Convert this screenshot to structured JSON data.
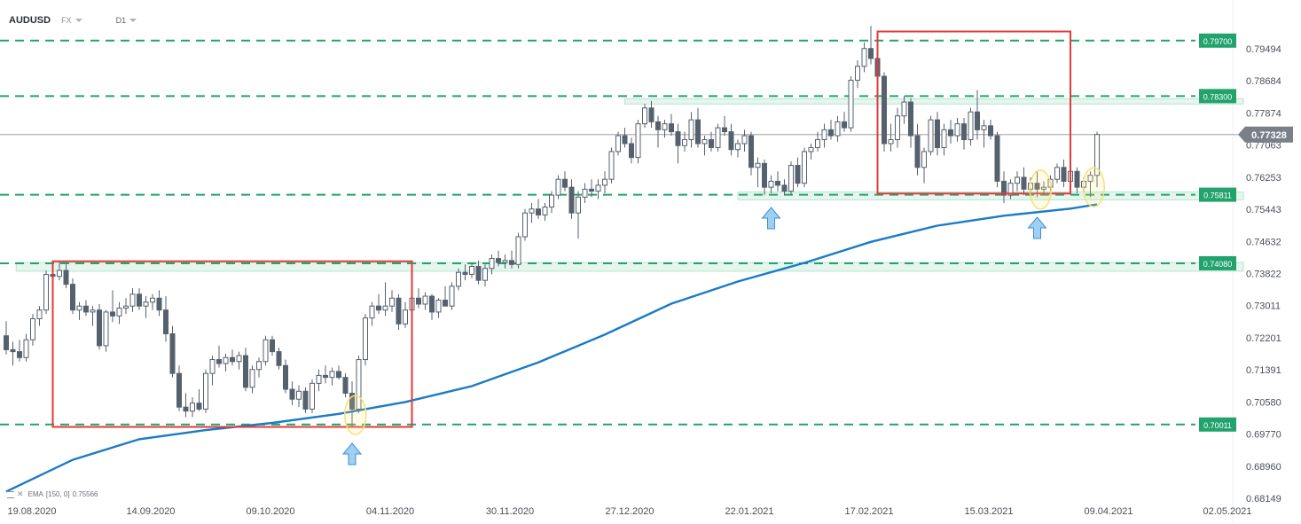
{
  "header": {
    "symbol": "AUDUSD",
    "market": "FX",
    "timeframe": "D1"
  },
  "indicator": {
    "name": "EMA",
    "params": "[150, 0]",
    "value": "0.75566"
  },
  "colors": {
    "bull": "#ffffff",
    "bear": "#56616d",
    "ema": "#1a7bc6",
    "level": "#22a36c",
    "box": "#e03b3b",
    "zone": "#b6e6cf",
    "last_price": "#7a8089"
  },
  "icons": [
    "arrow-up-icon",
    "eye-icon",
    "close-icon"
  ],
  "chart_data": {
    "type": "candlestick",
    "symbol": "AUDUSD",
    "timeframe": "D1",
    "x_tick_labels": [
      "19.08.2020",
      "14.09.2020",
      "09.10.2020",
      "04.11.2020",
      "30.11.2020",
      "27.12.2020",
      "22.01.2021",
      "17.02.2021",
      "15.03.2021",
      "09.04.2021",
      "02.05.2021"
    ],
    "x_ticks": [
      0,
      18,
      36,
      54,
      72,
      90,
      108,
      126,
      144,
      162,
      180
    ],
    "y_tick_labels": [
      "0.79494",
      "0.78684",
      "0.77874",
      "0.77063",
      "0.76253",
      "0.75443",
      "0.74632",
      "0.73822",
      "0.73011",
      "0.72201",
      "0.71391",
      "0.70580",
      "0.69770",
      "0.68960",
      "0.68149"
    ],
    "y_ticks": [
      0.79494,
      0.78684,
      0.77874,
      0.77063,
      0.76253,
      0.75443,
      0.74632,
      0.73822,
      0.73011,
      0.72201,
      0.71391,
      0.7058,
      0.6977,
      0.6896,
      0.68149
    ],
    "last_price": 0.77328,
    "levels": [
      {
        "value": 0.797,
        "label": "0.79700"
      },
      {
        "value": 0.783,
        "label": "0.78300"
      },
      {
        "value": 0.75811,
        "label": "0.75811"
      },
      {
        "value": 0.7408,
        "label": "0.74080"
      },
      {
        "value": 0.70011,
        "label": "0.70011"
      }
    ],
    "boxes": [
      {
        "x0": 7,
        "x1": 61,
        "y_low": 0.6995,
        "y_high": 0.7413
      },
      {
        "x0": 131,
        "x1": 160,
        "y_low": 0.7584,
        "y_high": 0.7993
      }
    ],
    "zones": [
      {
        "x0": 1.5,
        "x1": 186,
        "y_low": 0.7388,
        "y_high": 0.741
      },
      {
        "x0": 93,
        "x1": 186,
        "y_low": 0.781,
        "y_high": 0.7823
      },
      {
        "x0": 110,
        "x1": 186,
        "y_low": 0.7568,
        "y_high": 0.7588
      }
    ],
    "arrows": [
      52,
      115,
      155
    ],
    "circles": [
      {
        "x": 52.5,
        "y": 0.7025
      },
      {
        "x": 155.5,
        "y": 0.7594
      },
      {
        "x": 163.5,
        "y": 0.76
      }
    ],
    "ema": [
      {
        "x": 0,
        "y": 0.6832
      },
      {
        "x": 10,
        "y": 0.6912
      },
      {
        "x": 20,
        "y": 0.6964
      },
      {
        "x": 30,
        "y": 0.6987
      },
      {
        "x": 40,
        "y": 0.7005
      },
      {
        "x": 50,
        "y": 0.7028
      },
      {
        "x": 60,
        "y": 0.7058
      },
      {
        "x": 70,
        "y": 0.7098
      },
      {
        "x": 80,
        "y": 0.7158
      },
      {
        "x": 90,
        "y": 0.7228
      },
      {
        "x": 100,
        "y": 0.7306
      },
      {
        "x": 110,
        "y": 0.7362
      },
      {
        "x": 120,
        "y": 0.7409
      },
      {
        "x": 130,
        "y": 0.7462
      },
      {
        "x": 140,
        "y": 0.7503
      },
      {
        "x": 150,
        "y": 0.7528
      },
      {
        "x": 160,
        "y": 0.7546
      },
      {
        "x": 164,
        "y": 0.75566
      }
    ],
    "candles": [
      {
        "o": 0.7225,
        "h": 0.7262,
        "l": 0.7178,
        "c": 0.719
      },
      {
        "o": 0.719,
        "h": 0.721,
        "l": 0.715,
        "c": 0.7185
      },
      {
        "o": 0.7185,
        "h": 0.7215,
        "l": 0.716,
        "c": 0.717
      },
      {
        "o": 0.717,
        "h": 0.723,
        "l": 0.716,
        "c": 0.7215
      },
      {
        "o": 0.7215,
        "h": 0.728,
        "l": 0.72,
        "c": 0.7268
      },
      {
        "o": 0.7268,
        "h": 0.73,
        "l": 0.725,
        "c": 0.729
      },
      {
        "o": 0.729,
        "h": 0.739,
        "l": 0.728,
        "c": 0.738
      },
      {
        "o": 0.738,
        "h": 0.74,
        "l": 0.734,
        "c": 0.7375
      },
      {
        "o": 0.7375,
        "h": 0.7413,
        "l": 0.7365,
        "c": 0.739
      },
      {
        "o": 0.739,
        "h": 0.7405,
        "l": 0.7345,
        "c": 0.7355
      },
      {
        "o": 0.7355,
        "h": 0.737,
        "l": 0.728,
        "c": 0.729
      },
      {
        "o": 0.729,
        "h": 0.731,
        "l": 0.7265,
        "c": 0.73
      },
      {
        "o": 0.73,
        "h": 0.7315,
        "l": 0.7275,
        "c": 0.7285
      },
      {
        "o": 0.7285,
        "h": 0.73,
        "l": 0.725,
        "c": 0.729
      },
      {
        "o": 0.729,
        "h": 0.7305,
        "l": 0.719,
        "c": 0.72
      },
      {
        "o": 0.72,
        "h": 0.729,
        "l": 0.7185,
        "c": 0.7285
      },
      {
        "o": 0.7285,
        "h": 0.734,
        "l": 0.726,
        "c": 0.7275
      },
      {
        "o": 0.7275,
        "h": 0.731,
        "l": 0.7255,
        "c": 0.7295
      },
      {
        "o": 0.7295,
        "h": 0.732,
        "l": 0.728,
        "c": 0.73
      },
      {
        "o": 0.73,
        "h": 0.7345,
        "l": 0.7285,
        "c": 0.733
      },
      {
        "o": 0.733,
        "h": 0.7345,
        "l": 0.729,
        "c": 0.73
      },
      {
        "o": 0.73,
        "h": 0.7325,
        "l": 0.727,
        "c": 0.731
      },
      {
        "o": 0.731,
        "h": 0.733,
        "l": 0.729,
        "c": 0.732
      },
      {
        "o": 0.732,
        "h": 0.734,
        "l": 0.7275,
        "c": 0.729
      },
      {
        "o": 0.729,
        "h": 0.7325,
        "l": 0.721,
        "c": 0.723
      },
      {
        "o": 0.723,
        "h": 0.725,
        "l": 0.712,
        "c": 0.713
      },
      {
        "o": 0.713,
        "h": 0.715,
        "l": 0.7035,
        "c": 0.7045
      },
      {
        "o": 0.7045,
        "h": 0.708,
        "l": 0.702,
        "c": 0.7035
      },
      {
        "o": 0.7035,
        "h": 0.707,
        "l": 0.702,
        "c": 0.7055
      },
      {
        "o": 0.7055,
        "h": 0.709,
        "l": 0.7035,
        "c": 0.704
      },
      {
        "o": 0.704,
        "h": 0.714,
        "l": 0.703,
        "c": 0.713
      },
      {
        "o": 0.713,
        "h": 0.7175,
        "l": 0.71,
        "c": 0.7165
      },
      {
        "o": 0.7165,
        "h": 0.72,
        "l": 0.7145,
        "c": 0.7155
      },
      {
        "o": 0.7155,
        "h": 0.718,
        "l": 0.7135,
        "c": 0.717
      },
      {
        "o": 0.717,
        "h": 0.719,
        "l": 0.715,
        "c": 0.716
      },
      {
        "o": 0.716,
        "h": 0.7185,
        "l": 0.714,
        "c": 0.7175
      },
      {
        "o": 0.7175,
        "h": 0.7195,
        "l": 0.7085,
        "c": 0.7095
      },
      {
        "o": 0.7095,
        "h": 0.715,
        "l": 0.708,
        "c": 0.714
      },
      {
        "o": 0.714,
        "h": 0.717,
        "l": 0.712,
        "c": 0.716
      },
      {
        "o": 0.716,
        "h": 0.7225,
        "l": 0.715,
        "c": 0.7215
      },
      {
        "o": 0.7215,
        "h": 0.7225,
        "l": 0.7175,
        "c": 0.7185
      },
      {
        "o": 0.7185,
        "h": 0.7195,
        "l": 0.714,
        "c": 0.715
      },
      {
        "o": 0.715,
        "h": 0.7165,
        "l": 0.708,
        "c": 0.709
      },
      {
        "o": 0.709,
        "h": 0.711,
        "l": 0.705,
        "c": 0.7065
      },
      {
        "o": 0.7065,
        "h": 0.71,
        "l": 0.7045,
        "c": 0.7085
      },
      {
        "o": 0.7085,
        "h": 0.7095,
        "l": 0.703,
        "c": 0.704
      },
      {
        "o": 0.704,
        "h": 0.7115,
        "l": 0.703,
        "c": 0.7105
      },
      {
        "o": 0.7105,
        "h": 0.714,
        "l": 0.7085,
        "c": 0.7125
      },
      {
        "o": 0.7125,
        "h": 0.715,
        "l": 0.7105,
        "c": 0.712
      },
      {
        "o": 0.712,
        "h": 0.7145,
        "l": 0.71,
        "c": 0.7135
      },
      {
        "o": 0.7135,
        "h": 0.715,
        "l": 0.7115,
        "c": 0.712
      },
      {
        "o": 0.712,
        "h": 0.713,
        "l": 0.707,
        "c": 0.708
      },
      {
        "o": 0.708,
        "h": 0.711,
        "l": 0.6997,
        "c": 0.704
      },
      {
        "o": 0.704,
        "h": 0.7175,
        "l": 0.703,
        "c": 0.7165
      },
      {
        "o": 0.7165,
        "h": 0.728,
        "l": 0.715,
        "c": 0.727
      },
      {
        "o": 0.727,
        "h": 0.731,
        "l": 0.725,
        "c": 0.73
      },
      {
        "o": 0.73,
        "h": 0.733,
        "l": 0.728,
        "c": 0.729
      },
      {
        "o": 0.729,
        "h": 0.736,
        "l": 0.7275,
        "c": 0.73
      },
      {
        "o": 0.73,
        "h": 0.734,
        "l": 0.7285,
        "c": 0.732
      },
      {
        "o": 0.732,
        "h": 0.733,
        "l": 0.724,
        "c": 0.7255
      },
      {
        "o": 0.7255,
        "h": 0.731,
        "l": 0.7245,
        "c": 0.729
      },
      {
        "o": 0.729,
        "h": 0.733,
        "l": 0.728,
        "c": 0.732
      },
      {
        "o": 0.732,
        "h": 0.7345,
        "l": 0.7295,
        "c": 0.7305
      },
      {
        "o": 0.7305,
        "h": 0.7335,
        "l": 0.729,
        "c": 0.7325
      },
      {
        "o": 0.7325,
        "h": 0.733,
        "l": 0.7265,
        "c": 0.7285
      },
      {
        "o": 0.7285,
        "h": 0.732,
        "l": 0.727,
        "c": 0.7315
      },
      {
        "o": 0.7315,
        "h": 0.735,
        "l": 0.73,
        "c": 0.73
      },
      {
        "o": 0.73,
        "h": 0.736,
        "l": 0.729,
        "c": 0.735
      },
      {
        "o": 0.735,
        "h": 0.7395,
        "l": 0.734,
        "c": 0.7385
      },
      {
        "o": 0.7385,
        "h": 0.7405,
        "l": 0.7365,
        "c": 0.738
      },
      {
        "o": 0.738,
        "h": 0.741,
        "l": 0.737,
        "c": 0.74
      },
      {
        "o": 0.74,
        "h": 0.7415,
        "l": 0.7355,
        "c": 0.7365
      },
      {
        "o": 0.7365,
        "h": 0.7405,
        "l": 0.735,
        "c": 0.7395
      },
      {
        "o": 0.7395,
        "h": 0.743,
        "l": 0.738,
        "c": 0.742
      },
      {
        "o": 0.742,
        "h": 0.744,
        "l": 0.74,
        "c": 0.741
      },
      {
        "o": 0.741,
        "h": 0.743,
        "l": 0.7395,
        "c": 0.7415
      },
      {
        "o": 0.7415,
        "h": 0.744,
        "l": 0.7395,
        "c": 0.7405
      },
      {
        "o": 0.7405,
        "h": 0.7485,
        "l": 0.7395,
        "c": 0.7475
      },
      {
        "o": 0.7475,
        "h": 0.7545,
        "l": 0.7465,
        "c": 0.7535
      },
      {
        "o": 0.7535,
        "h": 0.756,
        "l": 0.751,
        "c": 0.7545
      },
      {
        "o": 0.7545,
        "h": 0.757,
        "l": 0.752,
        "c": 0.753
      },
      {
        "o": 0.753,
        "h": 0.756,
        "l": 0.7515,
        "c": 0.755
      },
      {
        "o": 0.755,
        "h": 0.759,
        "l": 0.7535,
        "c": 0.758
      },
      {
        "o": 0.758,
        "h": 0.763,
        "l": 0.757,
        "c": 0.762
      },
      {
        "o": 0.762,
        "h": 0.764,
        "l": 0.759,
        "c": 0.76
      },
      {
        "o": 0.76,
        "h": 0.762,
        "l": 0.752,
        "c": 0.7535
      },
      {
        "o": 0.7535,
        "h": 0.759,
        "l": 0.747,
        "c": 0.7575
      },
      {
        "o": 0.7575,
        "h": 0.761,
        "l": 0.756,
        "c": 0.7595
      },
      {
        "o": 0.7595,
        "h": 0.762,
        "l": 0.7575,
        "c": 0.759
      },
      {
        "o": 0.759,
        "h": 0.762,
        "l": 0.757,
        "c": 0.7605
      },
      {
        "o": 0.7605,
        "h": 0.764,
        "l": 0.7585,
        "c": 0.762
      },
      {
        "o": 0.762,
        "h": 0.77,
        "l": 0.761,
        "c": 0.769
      },
      {
        "o": 0.769,
        "h": 0.774,
        "l": 0.768,
        "c": 0.773
      },
      {
        "o": 0.773,
        "h": 0.775,
        "l": 0.77,
        "c": 0.771
      },
      {
        "o": 0.771,
        "h": 0.7725,
        "l": 0.766,
        "c": 0.7675
      },
      {
        "o": 0.7675,
        "h": 0.777,
        "l": 0.766,
        "c": 0.776
      },
      {
        "o": 0.776,
        "h": 0.781,
        "l": 0.775,
        "c": 0.78
      },
      {
        "o": 0.78,
        "h": 0.7818,
        "l": 0.775,
        "c": 0.7765
      },
      {
        "o": 0.7765,
        "h": 0.778,
        "l": 0.77,
        "c": 0.7745
      },
      {
        "o": 0.7745,
        "h": 0.777,
        "l": 0.7725,
        "c": 0.776
      },
      {
        "o": 0.776,
        "h": 0.7785,
        "l": 0.773,
        "c": 0.774
      },
      {
        "o": 0.774,
        "h": 0.776,
        "l": 0.766,
        "c": 0.7705
      },
      {
        "o": 0.7705,
        "h": 0.774,
        "l": 0.769,
        "c": 0.772
      },
      {
        "o": 0.772,
        "h": 0.779,
        "l": 0.77,
        "c": 0.777
      },
      {
        "o": 0.777,
        "h": 0.78,
        "l": 0.77,
        "c": 0.771
      },
      {
        "o": 0.771,
        "h": 0.773,
        "l": 0.768,
        "c": 0.772
      },
      {
        "o": 0.772,
        "h": 0.774,
        "l": 0.769,
        "c": 0.77
      },
      {
        "o": 0.77,
        "h": 0.776,
        "l": 0.769,
        "c": 0.775
      },
      {
        "o": 0.775,
        "h": 0.778,
        "l": 0.773,
        "c": 0.774
      },
      {
        "o": 0.774,
        "h": 0.776,
        "l": 0.768,
        "c": 0.7695
      },
      {
        "o": 0.7695,
        "h": 0.772,
        "l": 0.7675,
        "c": 0.771
      },
      {
        "o": 0.771,
        "h": 0.7745,
        "l": 0.769,
        "c": 0.773
      },
      {
        "o": 0.773,
        "h": 0.774,
        "l": 0.763,
        "c": 0.765
      },
      {
        "o": 0.765,
        "h": 0.7675,
        "l": 0.76,
        "c": 0.766
      },
      {
        "o": 0.766,
        "h": 0.767,
        "l": 0.758,
        "c": 0.76
      },
      {
        "o": 0.76,
        "h": 0.763,
        "l": 0.7585,
        "c": 0.7615
      },
      {
        "o": 0.7615,
        "h": 0.764,
        "l": 0.759,
        "c": 0.7605
      },
      {
        "o": 0.7605,
        "h": 0.762,
        "l": 0.758,
        "c": 0.759
      },
      {
        "o": 0.759,
        "h": 0.7665,
        "l": 0.758,
        "c": 0.7655
      },
      {
        "o": 0.7655,
        "h": 0.7675,
        "l": 0.76,
        "c": 0.761
      },
      {
        "o": 0.761,
        "h": 0.77,
        "l": 0.76,
        "c": 0.769
      },
      {
        "o": 0.769,
        "h": 0.771,
        "l": 0.767,
        "c": 0.77
      },
      {
        "o": 0.77,
        "h": 0.774,
        "l": 0.769,
        "c": 0.772
      },
      {
        "o": 0.772,
        "h": 0.776,
        "l": 0.77,
        "c": 0.7745
      },
      {
        "o": 0.7745,
        "h": 0.777,
        "l": 0.772,
        "c": 0.773
      },
      {
        "o": 0.773,
        "h": 0.778,
        "l": 0.7715,
        "c": 0.7765
      },
      {
        "o": 0.7765,
        "h": 0.779,
        "l": 0.774,
        "c": 0.775
      },
      {
        "o": 0.775,
        "h": 0.788,
        "l": 0.774,
        "c": 0.787
      },
      {
        "o": 0.787,
        "h": 0.792,
        "l": 0.785,
        "c": 0.7905
      },
      {
        "o": 0.7905,
        "h": 0.7965,
        "l": 0.789,
        "c": 0.795
      },
      {
        "o": 0.795,
        "h": 0.8007,
        "l": 0.791,
        "c": 0.7925
      },
      {
        "o": 0.7925,
        "h": 0.796,
        "l": 0.786,
        "c": 0.788
      },
      {
        "o": 0.788,
        "h": 0.789,
        "l": 0.769,
        "c": 0.771
      },
      {
        "o": 0.771,
        "h": 0.776,
        "l": 0.769,
        "c": 0.772
      },
      {
        "o": 0.772,
        "h": 0.78,
        "l": 0.77,
        "c": 0.778
      },
      {
        "o": 0.778,
        "h": 0.783,
        "l": 0.776,
        "c": 0.7815
      },
      {
        "o": 0.7815,
        "h": 0.7825,
        "l": 0.77,
        "c": 0.773
      },
      {
        "o": 0.773,
        "h": 0.776,
        "l": 0.763,
        "c": 0.765
      },
      {
        "o": 0.765,
        "h": 0.77,
        "l": 0.761,
        "c": 0.769
      },
      {
        "o": 0.769,
        "h": 0.778,
        "l": 0.768,
        "c": 0.777
      },
      {
        "o": 0.777,
        "h": 0.779,
        "l": 0.768,
        "c": 0.77
      },
      {
        "o": 0.77,
        "h": 0.776,
        "l": 0.768,
        "c": 0.7745
      },
      {
        "o": 0.7745,
        "h": 0.777,
        "l": 0.771,
        "c": 0.773
      },
      {
        "o": 0.773,
        "h": 0.7775,
        "l": 0.7715,
        "c": 0.776
      },
      {
        "o": 0.776,
        "h": 0.7775,
        "l": 0.7695,
        "c": 0.772
      },
      {
        "o": 0.772,
        "h": 0.78,
        "l": 0.7705,
        "c": 0.779
      },
      {
        "o": 0.779,
        "h": 0.7845,
        "l": 0.772,
        "c": 0.7745
      },
      {
        "o": 0.7745,
        "h": 0.777,
        "l": 0.77,
        "c": 0.7755
      },
      {
        "o": 0.7755,
        "h": 0.777,
        "l": 0.772,
        "c": 0.773
      },
      {
        "o": 0.773,
        "h": 0.774,
        "l": 0.76,
        "c": 0.7615
      },
      {
        "o": 0.7615,
        "h": 0.764,
        "l": 0.756,
        "c": 0.758
      },
      {
        "o": 0.758,
        "h": 0.762,
        "l": 0.757,
        "c": 0.761
      },
      {
        "o": 0.761,
        "h": 0.764,
        "l": 0.759,
        "c": 0.7625
      },
      {
        "o": 0.7625,
        "h": 0.765,
        "l": 0.758,
        "c": 0.7595
      },
      {
        "o": 0.7595,
        "h": 0.7625,
        "l": 0.7585,
        "c": 0.761
      },
      {
        "o": 0.761,
        "h": 0.764,
        "l": 0.7575,
        "c": 0.7595
      },
      {
        "o": 0.7595,
        "h": 0.7615,
        "l": 0.758,
        "c": 0.76
      },
      {
        "o": 0.76,
        "h": 0.763,
        "l": 0.759,
        "c": 0.762
      },
      {
        "o": 0.762,
        "h": 0.766,
        "l": 0.761,
        "c": 0.765
      },
      {
        "o": 0.765,
        "h": 0.767,
        "l": 0.76,
        "c": 0.7615
      },
      {
        "o": 0.7615,
        "h": 0.765,
        "l": 0.76,
        "c": 0.764
      },
      {
        "o": 0.764,
        "h": 0.765,
        "l": 0.7585,
        "c": 0.76
      },
      {
        "o": 0.76,
        "h": 0.7625,
        "l": 0.7585,
        "c": 0.7615
      },
      {
        "o": 0.7615,
        "h": 0.764,
        "l": 0.7575,
        "c": 0.763
      },
      {
        "o": 0.763,
        "h": 0.774,
        "l": 0.76,
        "c": 0.7733
      }
    ]
  }
}
